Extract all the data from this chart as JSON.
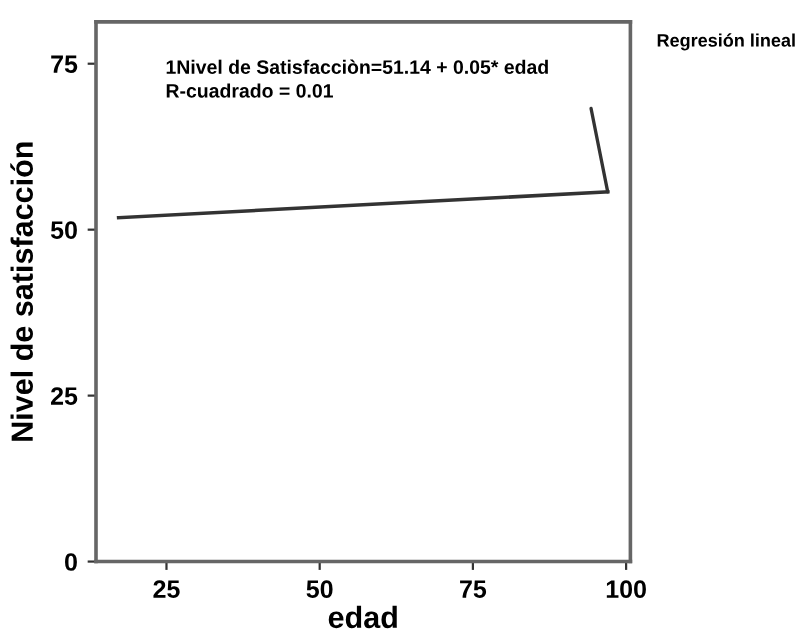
{
  "chart_data": {
    "type": "line",
    "xlabel": "edad",
    "ylabel": "Nivel de satisfacción",
    "legend_title": "Regresión lineal",
    "x": [
      17.2,
      97.0
    ],
    "series": [
      {
        "color": "#333333",
        "values": [
          51.8,
          55.7
        ]
      }
    ],
    "annotations": [
      "1Nivel de Satisfacciòn=51.14 + 0.05* edad\nR-cuadrado = 0.01"
    ],
    "xlim": [
      13.5,
      100.7
    ],
    "ylim": [
      0,
      81.3
    ],
    "xticks": [
      25,
      50,
      75,
      100
    ],
    "yticks": [
      0,
      25,
      50,
      75
    ],
    "grid": false,
    "marker": "none",
    "line_style": "solid"
  }
}
